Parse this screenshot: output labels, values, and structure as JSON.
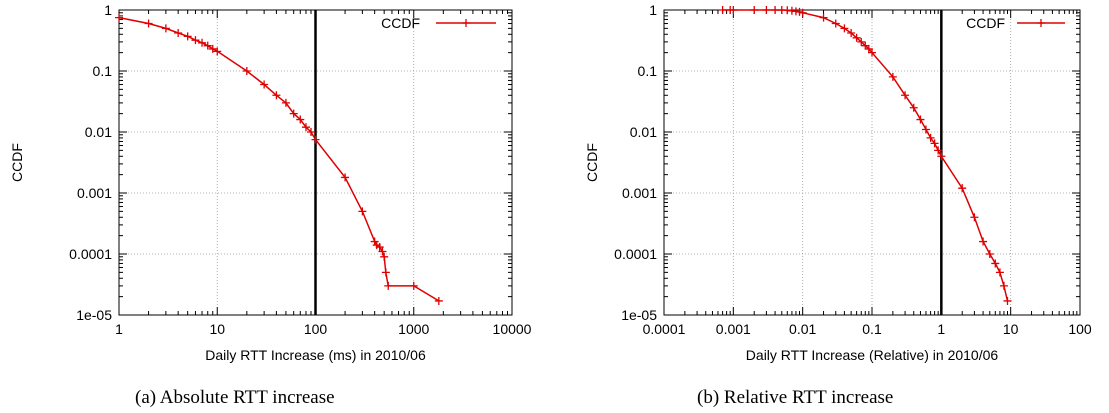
{
  "chart_data": [
    {
      "type": "line",
      "xscale": "log",
      "yscale": "log",
      "xlim": [
        1,
        10000
      ],
      "ylim": [
        1e-05,
        1
      ],
      "xticks": [
        "1",
        "10",
        "100",
        "1000",
        "10000"
      ],
      "yticks": [
        "1e-05",
        "0.0001",
        "0.001",
        "0.01",
        "0.1",
        "1"
      ],
      "xlabel": "Daily RTT Increase (ms) in 2010/06",
      "ylabel": "CCDF",
      "caption": "(a) Absolute RTT increase",
      "grid": true,
      "legend_position": "top-right",
      "vline_x": 100,
      "series": [
        {
          "name": "CCDF",
          "color": "#e00000",
          "marker": "plus",
          "x": [
            1,
            2,
            3,
            4,
            5,
            6,
            7,
            8,
            9,
            10,
            20,
            30,
            40,
            50,
            60,
            70,
            80,
            90,
            100,
            200,
            300,
            400,
            420,
            450,
            480,
            500,
            520,
            550,
            1000,
            1800
          ],
          "y": [
            0.75,
            0.6,
            0.5,
            0.42,
            0.37,
            0.32,
            0.29,
            0.26,
            0.23,
            0.21,
            0.1,
            0.06,
            0.04,
            0.03,
            0.02,
            0.016,
            0.012,
            0.01,
            0.0075,
            0.0018,
            0.0005,
            0.00016,
            0.00014,
            0.00013,
            0.00011,
            9e-05,
            5e-05,
            3e-05,
            3e-05,
            1.7e-05
          ]
        }
      ]
    },
    {
      "type": "line",
      "xscale": "log",
      "yscale": "log",
      "xlim": [
        0.0001,
        100
      ],
      "ylim": [
        1e-05,
        1
      ],
      "xticks": [
        "0.0001",
        "0.001",
        "0.01",
        "0.1",
        "1",
        "10",
        "100"
      ],
      "yticks": [
        "1e-05",
        "0.0001",
        "0.001",
        "0.01",
        "0.1",
        "1"
      ],
      "xlabel": "Daily RTT Increase (Relative) in 2010/06",
      "ylabel": "CCDF",
      "caption": "(b) Relative RTT increase",
      "grid": true,
      "legend_position": "top-right",
      "vline_x": 1,
      "series": [
        {
          "name": "CCDF",
          "color": "#e00000",
          "marker": "plus",
          "x": [
            0.0007,
            0.0009,
            0.001,
            0.002,
            0.003,
            0.004,
            0.005,
            0.006,
            0.007,
            0.008,
            0.009,
            0.01,
            0.02,
            0.03,
            0.04,
            0.05,
            0.06,
            0.07,
            0.08,
            0.09,
            0.1,
            0.2,
            0.3,
            0.4,
            0.5,
            0.6,
            0.7,
            0.8,
            0.9,
            1,
            2,
            3,
            4,
            5,
            6,
            7,
            8,
            9
          ],
          "y": [
            1,
            1,
            1,
            1,
            1,
            1,
            1,
            0.99,
            0.97,
            0.95,
            0.93,
            0.9,
            0.75,
            0.6,
            0.5,
            0.42,
            0.35,
            0.3,
            0.26,
            0.23,
            0.2,
            0.08,
            0.04,
            0.025,
            0.016,
            0.011,
            0.008,
            0.0065,
            0.005,
            0.004,
            0.0012,
            0.0004,
            0.00016,
            0.0001,
            7e-05,
            5e-05,
            3e-05,
            1.7e-05
          ]
        }
      ]
    }
  ]
}
